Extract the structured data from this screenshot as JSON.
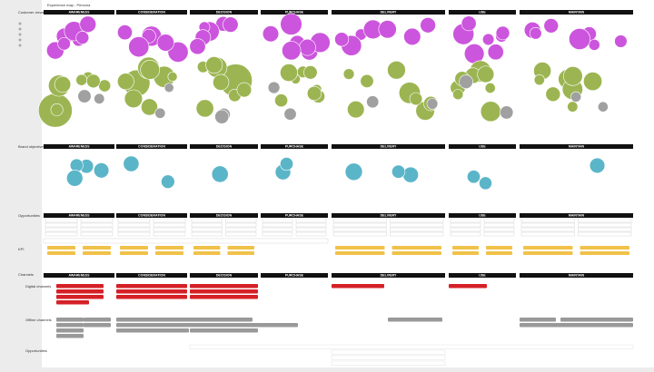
{
  "header": {
    "title": "Experience map - Persona"
  },
  "columns": [
    "AWARENESS",
    "CONSIDERATION",
    "DECISION",
    "PURCHASE",
    "DELIVERY",
    "USE",
    "MAINTAIN"
  ],
  "rows": {
    "customer_views": "Customer views",
    "brand_objectives": "Brand objectives",
    "opportunities": "Opportunities",
    "kpi": "KPI",
    "channels": "Channels",
    "digital_channels": "Digital channels",
    "offline_channels": "Offline channels",
    "channel_opportunities": "Opportunities"
  }
}
